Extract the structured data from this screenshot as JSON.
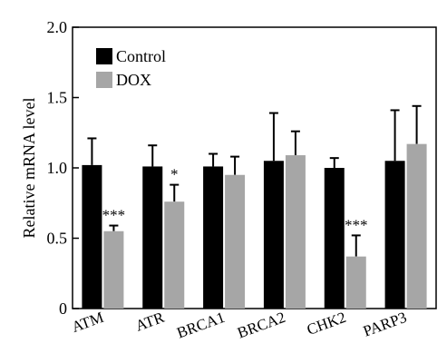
{
  "chart_data": {
    "type": "bar",
    "title": "",
    "xlabel": "",
    "ylabel": "Relative mRNA level",
    "ylim": [
      0,
      2.0
    ],
    "yticks": [
      "0",
      "0.5",
      "1.0",
      "1.5",
      "2.0"
    ],
    "grid": false,
    "legend_position": "top-left",
    "categories": [
      "ATM",
      "ATR",
      "BRCA1",
      "BRCA2",
      "CHK2",
      "PARP3"
    ],
    "series": [
      {
        "name": "Control",
        "color": "#000000",
        "values": [
          1.02,
          1.01,
          1.01,
          1.05,
          1.0,
          1.05
        ],
        "errors": [
          0.19,
          0.15,
          0.09,
          0.34,
          0.07,
          0.36
        ]
      },
      {
        "name": "DOX",
        "color": "#a6a6a6",
        "values": [
          0.55,
          0.76,
          0.95,
          1.09,
          0.37,
          1.17
        ],
        "errors": [
          0.04,
          0.12,
          0.13,
          0.17,
          0.15,
          0.27
        ]
      }
    ],
    "annotations": [
      {
        "category_index": 0,
        "series_index": 1,
        "text": "***"
      },
      {
        "category_index": 1,
        "series_index": 1,
        "text": "*"
      },
      {
        "category_index": 4,
        "series_index": 1,
        "text": "***"
      }
    ]
  }
}
